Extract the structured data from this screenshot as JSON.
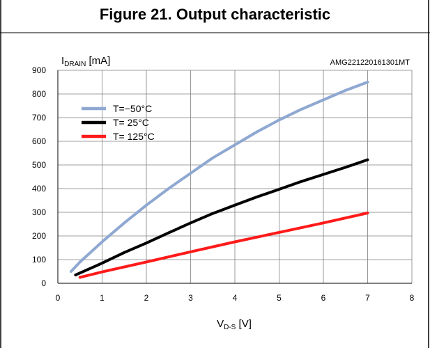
{
  "figure": {
    "title": "Figure 21. Output characteristic",
    "code": "AMG221220161301MT"
  },
  "chart_data": {
    "type": "line",
    "title": "Figure 21. Output characteristic",
    "ylabel": {
      "main": "I",
      "sub": "DRAIN",
      "unit": " [mA]"
    },
    "xlabel": {
      "main": "V",
      "sub": "D-S",
      "unit": " [V]"
    },
    "xlim": [
      0,
      8
    ],
    "ylim": [
      0,
      900
    ],
    "xticks": [
      "0",
      "1",
      "2",
      "3",
      "4",
      "5",
      "6",
      "7",
      "8"
    ],
    "yticks": [
      "0",
      "100",
      "200",
      "300",
      "400",
      "500",
      "600",
      "700",
      "800",
      "900"
    ],
    "grid": true,
    "legend_position": "top-left",
    "series": [
      {
        "name": "T=−50°C",
        "color": "#8FA8D2",
        "x": [
          0.3,
          0.5,
          1,
          1.5,
          2,
          2.5,
          3,
          3.5,
          4,
          4.5,
          5,
          5.5,
          6,
          6.5,
          7
        ],
        "y": [
          50,
          90,
          175,
          255,
          330,
          400,
          465,
          530,
          585,
          640,
          690,
          735,
          775,
          815,
          850
        ]
      },
      {
        "name": "T= 25°C",
        "color": "#000000",
        "x": [
          0.4,
          1,
          1.5,
          2,
          2.5,
          3,
          3.5,
          4,
          4.5,
          5,
          5.5,
          6,
          6.5,
          7
        ],
        "y": [
          35,
          85,
          130,
          170,
          213,
          255,
          295,
          330,
          365,
          397,
          430,
          460,
          490,
          522
        ]
      },
      {
        "name": "T= 125°C",
        "color": "#FF1A1A",
        "x": [
          0.5,
          1,
          2,
          3,
          4,
          5,
          6,
          7
        ],
        "y": [
          25,
          48,
          90,
          133,
          175,
          215,
          255,
          297
        ]
      }
    ]
  }
}
